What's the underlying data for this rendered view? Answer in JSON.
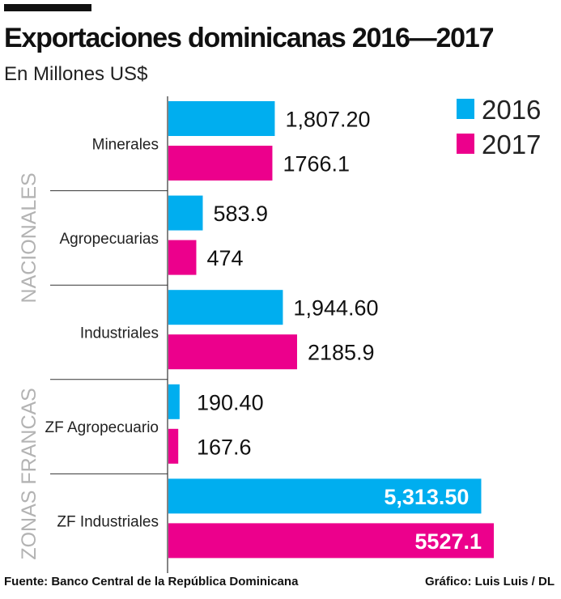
{
  "header": {
    "title": "Exportaciones dominicanas 2016—2017",
    "subtitle": "En Millones US$"
  },
  "footer": {
    "source": "Fuente: Banco Central de la República Dominicana",
    "credit": "Gráfico: Luis Luis / DL"
  },
  "colors": {
    "s2016": "#00aeef",
    "s2017": "#ec008c",
    "group": "#b3b3b3"
  },
  "chart_data": {
    "type": "bar",
    "orientation": "horizontal",
    "categories": [
      "Minerales",
      "Agropecuarias",
      "Industriales",
      "ZF Agropecuario",
      "ZF Industriales"
    ],
    "groups": [
      {
        "name": "NACIONALES",
        "categories": [
          "Minerales",
          "Agropecuarias",
          "Industriales"
        ]
      },
      {
        "name": "ZONAS FRANCAS",
        "categories": [
          "ZF Agropecuario",
          "ZF Industriales"
        ]
      }
    ],
    "series": [
      {
        "name": "2016",
        "values": [
          1807.2,
          583.9,
          1944.6,
          190.4,
          5313.5
        ],
        "labels": [
          "1,807.20",
          "583.9",
          "1,944.60",
          "190.40",
          "5,313.50"
        ]
      },
      {
        "name": "2017",
        "values": [
          1766.1,
          474,
          2185.9,
          167.6,
          5527.1
        ],
        "labels": [
          "1766.1",
          "474",
          "2185.9",
          "167.6",
          "5527.1"
        ]
      }
    ],
    "xlim": [
      0,
      5527.1
    ],
    "legend": "top-right",
    "grid": false
  }
}
